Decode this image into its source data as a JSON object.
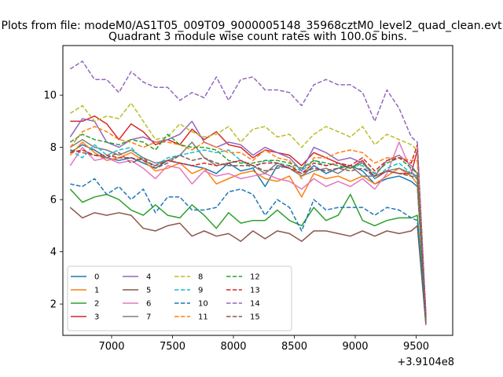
{
  "chart_data": {
    "type": "line",
    "suptitle": "Plots from file: modeM0/AS1T05_009T09_9000005148_35968cztM0_level2_quad_clean.evt",
    "title": "Quadrant 3 module wise count rates with 100.0s bins.",
    "xlabel": "",
    "ylabel": "",
    "x_offset_label": "+3.9104e8",
    "xlim": [
      6600,
      9800
    ],
    "ylim": [
      0.8,
      11.9
    ],
    "x_ticks": [
      7000,
      7500,
      8000,
      8500,
      9000,
      9500
    ],
    "y_ticks": [
      2,
      4,
      6,
      8,
      10
    ],
    "legend_position": "lower-left",
    "legend_columns": 4,
    "x": [
      6660,
      6760,
      6860,
      6960,
      7060,
      7160,
      7260,
      7360,
      7460,
      7560,
      7660,
      7760,
      7860,
      7960,
      8060,
      8160,
      8260,
      8360,
      8460,
      8560,
      8660,
      8760,
      8860,
      8960,
      9060,
      9160,
      9260,
      9360,
      9460,
      9510,
      9580
    ],
    "series": [
      {
        "name": "0",
        "color": "#1f77b4",
        "dash": "solid",
        "values": [
          7.8,
          8.1,
          7.9,
          7.6,
          7.5,
          7.6,
          7.4,
          7.2,
          7.5,
          7.4,
          7.3,
          7.2,
          7.0,
          7.4,
          7.1,
          7.2,
          6.5,
          7.3,
          7.2,
          6.9,
          7.3,
          7.0,
          7.2,
          7.3,
          7.1,
          6.6,
          6.8,
          6.9,
          6.7,
          6.5,
          1.3
        ]
      },
      {
        "name": "1",
        "color": "#ff7f0e",
        "dash": "solid",
        "values": [
          7.7,
          8.2,
          7.8,
          7.5,
          7.6,
          7.8,
          7.5,
          7.1,
          7.2,
          7.4,
          7.0,
          7.2,
          6.6,
          6.8,
          7.0,
          7.1,
          6.8,
          6.7,
          6.9,
          6.1,
          7.0,
          6.8,
          6.9,
          6.7,
          6.9,
          6.6,
          6.9,
          7.2,
          6.9,
          6.6,
          1.4
        ]
      },
      {
        "name": "2",
        "color": "#2ca02c",
        "dash": "solid",
        "values": [
          6.4,
          5.9,
          6.1,
          6.2,
          6.0,
          5.6,
          5.4,
          5.8,
          5.4,
          5.3,
          5.8,
          5.4,
          4.9,
          5.5,
          5.1,
          5.2,
          5.2,
          5.6,
          5.2,
          5.0,
          5.7,
          5.2,
          5.4,
          6.2,
          5.2,
          5.0,
          5.2,
          5.3,
          5.3,
          5.4,
          1.3
        ]
      },
      {
        "name": "3",
        "color": "#d62728",
        "dash": "solid",
        "values": [
          9.0,
          9.0,
          9.2,
          8.9,
          8.3,
          8.9,
          8.6,
          8.1,
          8.3,
          8.1,
          8.7,
          8.3,
          8.6,
          8.1,
          8.0,
          7.6,
          7.9,
          7.8,
          7.7,
          7.3,
          7.8,
          7.6,
          7.4,
          7.2,
          7.5,
          6.8,
          7.1,
          7.0,
          7.0,
          7.9,
          1.5
        ]
      },
      {
        "name": "4",
        "color": "#9467bd",
        "dash": "solid",
        "values": [
          8.4,
          9.1,
          9.0,
          8.2,
          8.0,
          8.3,
          8.4,
          8.2,
          8.3,
          8.5,
          9.0,
          8.2,
          8.0,
          8.2,
          8.1,
          7.7,
          8.0,
          7.8,
          7.6,
          7.1,
          8.0,
          7.8,
          7.5,
          7.6,
          7.4,
          6.9,
          7.5,
          7.7,
          7.3,
          7.0,
          1.6
        ]
      },
      {
        "name": "5",
        "color": "#8c564b",
        "dash": "solid",
        "values": [
          5.7,
          5.3,
          5.5,
          5.4,
          5.5,
          5.4,
          4.9,
          4.8,
          5.0,
          5.1,
          4.6,
          4.8,
          4.6,
          4.7,
          4.4,
          4.8,
          4.5,
          4.8,
          4.7,
          4.4,
          4.8,
          4.8,
          4.7,
          4.6,
          4.8,
          4.6,
          4.8,
          4.7,
          4.8,
          5.0,
          1.2
        ]
      },
      {
        "name": "6",
        "color": "#e377c2",
        "dash": "solid",
        "values": [
          7.3,
          8.0,
          7.5,
          7.6,
          7.4,
          7.5,
          7.2,
          6.8,
          7.3,
          7.2,
          6.6,
          7.1,
          6.9,
          7.0,
          6.8,
          6.9,
          7.0,
          6.8,
          6.7,
          6.4,
          6.8,
          6.5,
          6.7,
          6.5,
          6.8,
          6.4,
          7.0,
          8.2,
          7.1,
          6.8,
          1.5
        ]
      },
      {
        "name": "7",
        "color": "#7f7f7f",
        "dash": "solid",
        "values": [
          8.0,
          8.3,
          8.0,
          7.9,
          7.7,
          7.9,
          7.6,
          7.4,
          7.5,
          7.7,
          8.2,
          7.6,
          7.3,
          7.4,
          7.5,
          7.3,
          7.0,
          7.4,
          7.2,
          6.9,
          7.1,
          7.2,
          7.0,
          7.3,
          6.9,
          6.9,
          7.1,
          7.2,
          7.0,
          6.9,
          1.4
        ]
      },
      {
        "name": "8",
        "color": "#bcbd22",
        "dash": "dashed",
        "values": [
          9.3,
          9.6,
          9.0,
          9.2,
          9.1,
          9.7,
          9.0,
          8.3,
          8.4,
          8.9,
          8.6,
          8.4,
          8.5,
          8.8,
          8.2,
          8.7,
          8.8,
          8.4,
          8.5,
          8.0,
          8.5,
          8.8,
          8.6,
          8.4,
          8.8,
          8.1,
          8.5,
          8.3,
          8.1,
          7.9,
          1.6
        ]
      },
      {
        "name": "9",
        "color": "#17becf",
        "dash": "dashed",
        "values": [
          7.9,
          7.6,
          8.1,
          7.7,
          7.9,
          8.0,
          7.5,
          7.3,
          7.6,
          7.7,
          7.8,
          7.9,
          7.8,
          7.9,
          7.5,
          7.2,
          7.5,
          7.4,
          7.3,
          7.1,
          7.5,
          7.3,
          7.4,
          7.3,
          7.3,
          6.8,
          7.2,
          7.4,
          7.0,
          6.8,
          1.4
        ]
      },
      {
        "name": "10",
        "color": "#1f77b4",
        "dash": "dashed",
        "values": [
          6.6,
          6.5,
          6.8,
          6.2,
          6.5,
          6.0,
          6.4,
          5.5,
          6.1,
          6.1,
          5.6,
          5.6,
          5.7,
          6.3,
          6.4,
          6.2,
          5.4,
          6.0,
          5.7,
          4.8,
          6.0,
          5.6,
          5.7,
          5.7,
          5.7,
          5.4,
          5.7,
          5.6,
          5.3,
          5.2,
          1.3
        ]
      },
      {
        "name": "11",
        "color": "#ff7f0e",
        "dash": "dashed",
        "values": [
          8.0,
          8.6,
          8.8,
          8.6,
          8.3,
          8.2,
          8.0,
          8.2,
          8.2,
          8.1,
          7.9,
          8.2,
          8.0,
          7.8,
          7.8,
          7.5,
          7.9,
          7.6,
          7.5,
          6.8,
          7.6,
          7.6,
          7.8,
          7.9,
          7.8,
          7.4,
          7.6,
          7.6,
          7.5,
          7.5,
          1.5
        ]
      },
      {
        "name": "12",
        "color": "#2ca02c",
        "dash": "dashed",
        "values": [
          8.2,
          8.5,
          8.3,
          8.2,
          8.1,
          8.3,
          8.2,
          7.9,
          8.5,
          8.1,
          8.0,
          8.0,
          7.9,
          7.5,
          7.4,
          7.4,
          7.5,
          7.5,
          7.4,
          7.2,
          7.5,
          7.4,
          7.3,
          7.2,
          7.4,
          7.0,
          7.4,
          7.6,
          7.2,
          7.0,
          1.4
        ]
      },
      {
        "name": "13",
        "color": "#d62728",
        "dash": "dashed",
        "values": [
          7.8,
          7.9,
          7.7,
          7.7,
          7.6,
          7.6,
          7.5,
          7.3,
          7.5,
          7.4,
          7.3,
          7.4,
          7.3,
          7.4,
          7.5,
          7.3,
          7.4,
          7.4,
          7.2,
          7.0,
          7.4,
          7.3,
          7.4,
          7.3,
          7.6,
          7.1,
          7.5,
          7.6,
          7.4,
          8.1,
          1.6
        ]
      },
      {
        "name": "14",
        "color": "#9467bd",
        "dash": "dashed",
        "values": [
          11.0,
          11.3,
          10.6,
          10.6,
          10.1,
          10.9,
          10.5,
          10.3,
          10.3,
          9.8,
          10.1,
          9.9,
          10.7,
          9.8,
          10.6,
          10.7,
          10.2,
          10.2,
          10.1,
          9.6,
          10.4,
          10.6,
          10.4,
          10.4,
          10.1,
          9.0,
          10.2,
          9.5,
          8.4,
          8.2,
          1.5
        ]
      },
      {
        "name": "15",
        "color": "#8c564b",
        "dash": "dashed",
        "values": [
          7.9,
          7.8,
          7.7,
          7.6,
          7.8,
          7.4,
          7.6,
          7.2,
          7.4,
          7.7,
          7.5,
          7.6,
          7.4,
          7.3,
          7.3,
          7.3,
          7.1,
          7.2,
          7.3,
          7.0,
          7.2,
          7.1,
          7.2,
          7.1,
          7.2,
          6.9,
          7.1,
          7.0,
          6.9,
          6.8,
          1.3
        ]
      }
    ]
  }
}
